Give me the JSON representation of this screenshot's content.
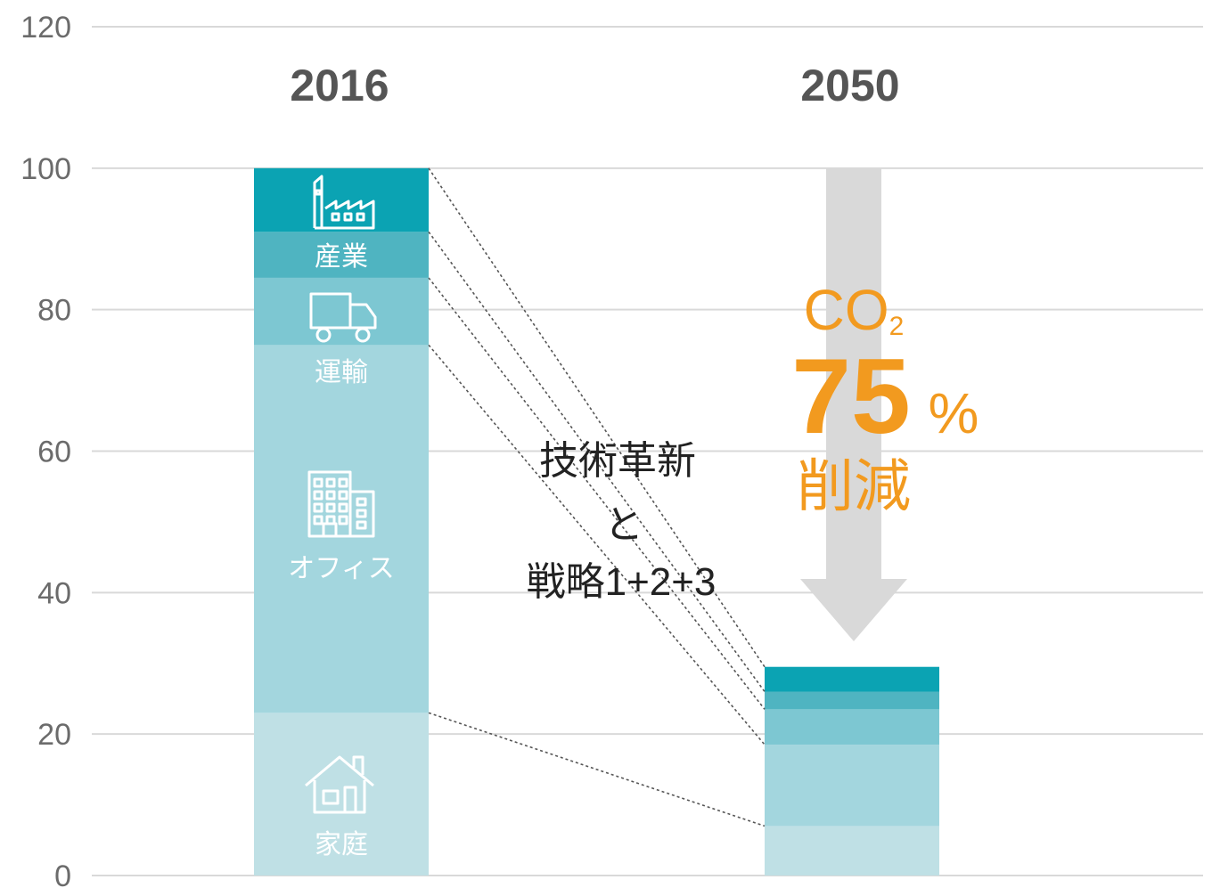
{
  "chart_data": {
    "type": "bar",
    "stacked": true,
    "categories": [
      "2016",
      "2050"
    ],
    "ylim": [
      0,
      120
    ],
    "yticks": [
      0,
      20,
      40,
      60,
      80,
      100,
      120
    ],
    "grid": true,
    "series": [
      {
        "name": "家庭",
        "values": [
          23,
          7
        ],
        "color": "#bfe0e5",
        "icon": "house-icon"
      },
      {
        "name": "オフィス",
        "values": [
          52,
          11.5
        ],
        "color": "#a3d6de",
        "icon": "office-building-icon"
      },
      {
        "name": "運輸",
        "values": [
          9.5,
          5
        ],
        "color": "#7dc7d2",
        "icon": "truck-icon"
      },
      {
        "name": "",
        "values": [
          6.5,
          2.5
        ],
        "color": "#4fb4c1"
      },
      {
        "name": "産業",
        "values": [
          9,
          3.5
        ],
        "color": "#0ba3b3",
        "icon": "factory-icon"
      }
    ],
    "annotations": {
      "middle": [
        "技術革新",
        "と",
        "戦略1+2+3"
      ],
      "reduction": {
        "co": "CO",
        "sub": "2",
        "value": "75",
        "unit": "%",
        "label": "削減",
        "color": "#f29a1f"
      },
      "arrow_color": "#d9d9d9"
    }
  }
}
